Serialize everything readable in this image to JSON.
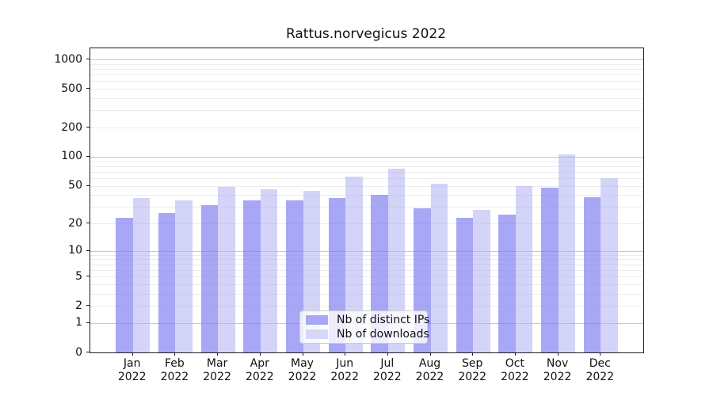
{
  "title": "Rattus.norvegicus 2022",
  "chart_data": {
    "type": "bar",
    "title": "Rattus.norvegicus 2022",
    "categories": [
      "Jan",
      "Feb",
      "Mar",
      "Apr",
      "May",
      "Jun",
      "Jul",
      "Aug",
      "Sep",
      "Oct",
      "Nov",
      "Dec"
    ],
    "year": "2022",
    "series": [
      {
        "name": "Nb of distinct IPs",
        "values": [
          23,
          26,
          31,
          35,
          35,
          37,
          40,
          29,
          23,
          25,
          48,
          38
        ],
        "color": "#7a7af0",
        "opacity": 0.66,
        "legend_swatch_color": "#a8a8f6"
      },
      {
        "name": "Nb of downloads",
        "values": [
          37,
          35,
          49,
          46,
          44,
          62,
          75,
          52,
          28,
          50,
          105,
          60
        ],
        "color": "#adadf2",
        "opacity": 0.52,
        "legend_swatch_color": "#d7d7f9"
      }
    ],
    "yscale": "log1p",
    "ylim": [
      0,
      1300
    ],
    "yticks": [
      0,
      1,
      2,
      5,
      10,
      20,
      50,
      100,
      200,
      500,
      1000
    ],
    "yticks_minor": [
      3,
      4,
      6,
      7,
      8,
      9,
      30,
      40,
      60,
      70,
      80,
      90,
      300,
      400,
      600,
      700,
      800,
      900
    ],
    "major_grid_values": [
      1,
      10,
      100,
      1000
    ],
    "grid": true,
    "legend_position": "lower center",
    "xlabel": "",
    "ylabel": ""
  },
  "colors": {
    "ips_bar": "#a8a8f6",
    "downloads_bar": "#d7d7f9",
    "grid_major": "#c9c9c9",
    "grid_minor": "#ececec",
    "spine": "#1c1c1c"
  }
}
